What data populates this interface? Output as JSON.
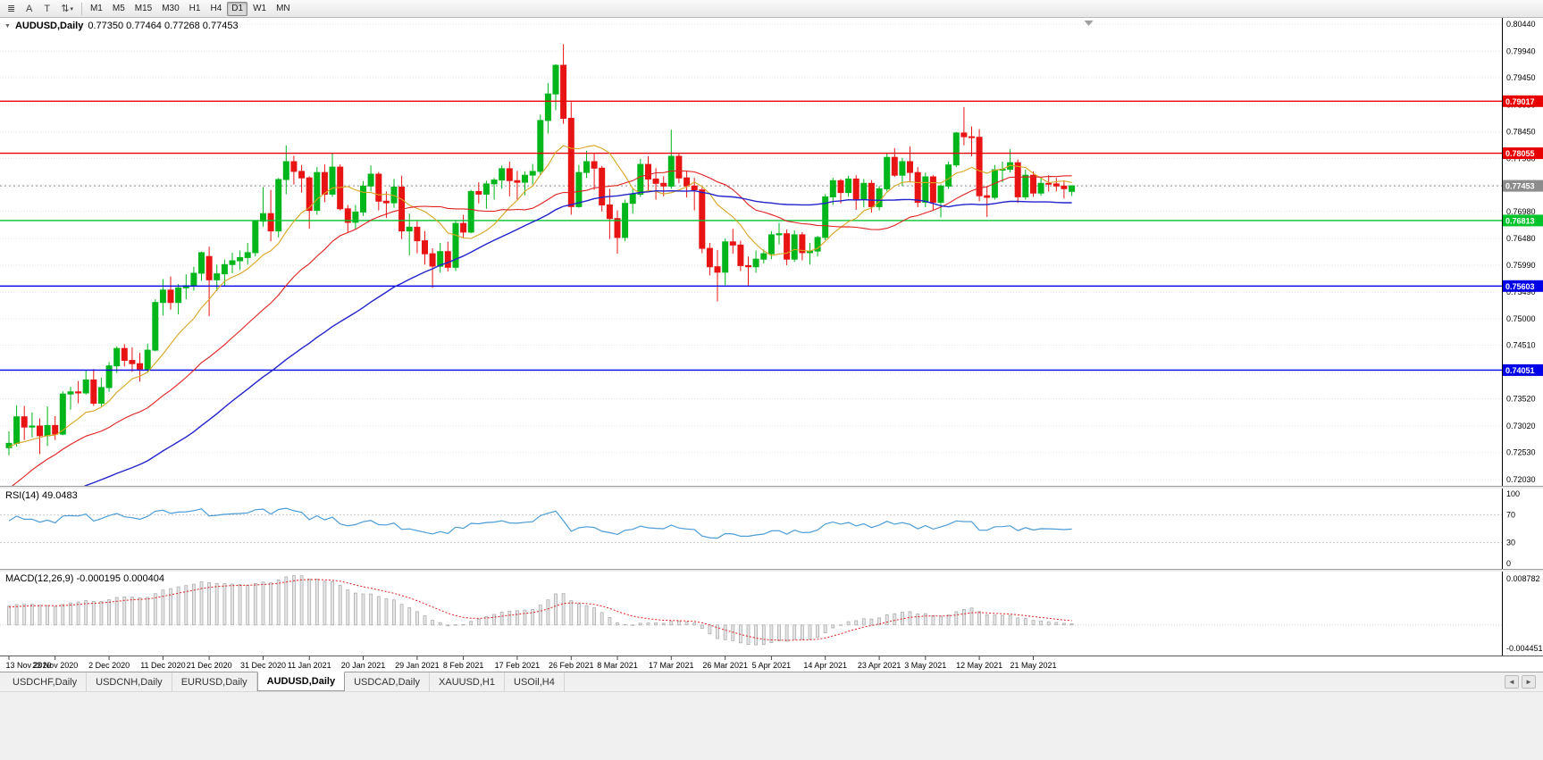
{
  "colors": {
    "bull": "#00B61B",
    "bear": "#E81414",
    "ma_fast": "#D9A521",
    "ma_mid": "#E02020",
    "ma_slow": "#2323CC",
    "level_red": "#E80000",
    "level_green": "#00C42B",
    "level_blue": "#0202E8",
    "bid": "#8C8C8C",
    "rsi": "#4C9CD6",
    "macd_hist_fill": "#E6E6E6",
    "macd_hist_stroke": "#ADADAD",
    "macd_signal": "#E02020",
    "grid": "#E4E4E4"
  },
  "toolbar": {
    "icon_buttons": [
      {
        "name": "chart-tools-icon",
        "glyph": "≣"
      },
      {
        "name": "letter-a-tool-button",
        "glyph": "A"
      },
      {
        "name": "text-box-tool-button",
        "glyph": "T"
      },
      {
        "name": "scale-arrows-dropdown-button",
        "glyph": "⇅",
        "caret": "▾"
      }
    ],
    "timeframes": [
      "M1",
      "M5",
      "M15",
      "M30",
      "H1",
      "H4",
      "D1",
      "W1",
      "MN"
    ],
    "active_timeframe": "D1"
  },
  "chart": {
    "collapse_glyph": "▼",
    "symbol": "AUDUSD,Daily",
    "ohlc": "0.77350 0.77464 0.77268 0.77453",
    "price_max": 0.8044,
    "price_min": 0.7203,
    "price_axis_labels": [
      "0.80440",
      "0.79940",
      "0.79450",
      "0.78950",
      "0.78450",
      "0.77960",
      "0.77470",
      "0.76980",
      "0.76480",
      "0.75990",
      "0.75490",
      "0.75000",
      "0.74510",
      "0.74010",
      "0.73520",
      "0.73020",
      "0.72530",
      "0.72030"
    ],
    "levels": [
      {
        "value": 0.79017,
        "label": "0.79017",
        "color": "level_red",
        "style": "solid"
      },
      {
        "value": 0.78055,
        "label": "0.78055",
        "color": "level_red",
        "style": "solid"
      },
      {
        "value": 0.77453,
        "label": "0.77453",
        "color": "bid",
        "style": "dotted"
      },
      {
        "value": 0.76813,
        "label": "0.76813",
        "color": "level_green",
        "style": "solid"
      },
      {
        "value": 0.75603,
        "label": "0.75603",
        "color": "level_blue",
        "style": "solid"
      },
      {
        "value": 0.74051,
        "label": "0.74051",
        "color": "level_blue",
        "style": "solid"
      }
    ],
    "date_labels": [
      {
        "text": "13 Nov 2020",
        "i": 0
      },
      {
        "text": "23 Nov 2020",
        "i": 6
      },
      {
        "text": "2 Dec 2020",
        "i": 13
      },
      {
        "text": "11 Dec 2020",
        "i": 20
      },
      {
        "text": "21 Dec 2020",
        "i": 26
      },
      {
        "text": "31 Dec 2020",
        "i": 33
      },
      {
        "text": "11 Jan 2021",
        "i": 39
      },
      {
        "text": "20 Jan 2021",
        "i": 46
      },
      {
        "text": "29 Jan 2021",
        "i": 53
      },
      {
        "text": "8 Feb 2021",
        "i": 59
      },
      {
        "text": "17 Feb 2021",
        "i": 66
      },
      {
        "text": "26 Feb 2021",
        "i": 73
      },
      {
        "text": "8 Mar 2021",
        "i": 79
      },
      {
        "text": "17 Mar 2021",
        "i": 86
      },
      {
        "text": "26 Mar 2021",
        "i": 93
      },
      {
        "text": "5 Apr 2021",
        "i": 99
      },
      {
        "text": "14 Apr 2021",
        "i": 106
      },
      {
        "text": "23 Apr 2021",
        "i": 113
      },
      {
        "text": "3 May 2021",
        "i": 119
      },
      {
        "text": "12 May 2021",
        "i": 126
      },
      {
        "text": "21 May 2021",
        "i": 133
      }
    ]
  },
  "rsi": {
    "label": "RSI(14) 49.0483",
    "current_value": "49.0483",
    "levels": [
      100,
      70,
      30,
      0
    ]
  },
  "macd": {
    "label": "MACD(12,26,9) -0.000195 0.000404",
    "macd_value": "-0.000195",
    "signal_value": "0.000404",
    "axis_max": 0.008782,
    "axis_min": -0.004451,
    "axis_max_label": "0.008782",
    "axis_min_label": "-0.004451"
  },
  "tabs": {
    "items": [
      {
        "label": "USDCHF,Daily",
        "active": false
      },
      {
        "label": "USDCNH,Daily",
        "active": false
      },
      {
        "label": "EURUSD,Daily",
        "active": false
      },
      {
        "label": "AUDUSD,Daily",
        "active": true
      },
      {
        "label": "USDCAD,Daily",
        "active": false
      },
      {
        "label": "XAUUSD,H1",
        "active": false
      },
      {
        "label": "USOil,H4",
        "active": false
      }
    ],
    "scroll_left_glyph": "◄",
    "scroll_right_glyph": "►"
  },
  "chart_data": {
    "type": "candlestick",
    "symbol": "AUDUSD",
    "timeframe": "Daily",
    "title": "AUDUSD,Daily",
    "ylim": [
      0.7203,
      0.8044
    ],
    "indicators": {
      "sma_fast": 10,
      "sma_mid": 25,
      "sma_slow": 50,
      "rsi": 14,
      "macd": [
        12,
        26,
        9
      ]
    },
    "prehistory_closes": [
      0.728,
      0.726,
      0.724,
      0.721,
      0.718,
      0.715,
      0.712,
      0.708,
      0.706,
      0.703,
      0.705,
      0.708,
      0.71,
      0.713,
      0.715,
      0.716,
      0.714,
      0.712,
      0.71,
      0.708,
      0.709,
      0.711,
      0.713,
      0.712,
      0.71,
      0.706,
      0.704,
      0.702,
      0.7,
      0.703,
      0.706,
      0.708,
      0.711,
      0.714,
      0.717,
      0.72,
      0.723,
      0.726,
      0.724,
      0.722,
      0.723,
      0.725,
      0.727,
      0.726,
      0.725,
      0.7265,
      0.728,
      0.727,
      0.7255,
      0.726
    ],
    "candles": [
      [
        0.7262,
        0.7292,
        0.7248,
        0.727
      ],
      [
        0.727,
        0.734,
        0.7264,
        0.7319
      ],
      [
        0.7319,
        0.7339,
        0.7276,
        0.73
      ],
      [
        0.73,
        0.7327,
        0.7281,
        0.7302
      ],
      [
        0.7302,
        0.7316,
        0.725,
        0.7284
      ],
      [
        0.7284,
        0.7338,
        0.7265,
        0.7303
      ],
      [
        0.7303,
        0.732,
        0.7276,
        0.7287
      ],
      [
        0.7287,
        0.7366,
        0.7285,
        0.7361
      ],
      [
        0.7361,
        0.7374,
        0.7332,
        0.7365
      ],
      [
        0.7365,
        0.7385,
        0.7344,
        0.7363
      ],
      [
        0.7363,
        0.7405,
        0.736,
        0.7387
      ],
      [
        0.7387,
        0.7407,
        0.7339,
        0.7344
      ],
      [
        0.7344,
        0.7391,
        0.7338,
        0.7373
      ],
      [
        0.7373,
        0.742,
        0.7365,
        0.7413
      ],
      [
        0.7413,
        0.7449,
        0.74,
        0.7445
      ],
      [
        0.7445,
        0.7453,
        0.7412,
        0.7423
      ],
      [
        0.7423,
        0.7447,
        0.7402,
        0.7417
      ],
      [
        0.7417,
        0.7437,
        0.7384,
        0.7407
      ],
      [
        0.7407,
        0.7454,
        0.74,
        0.7442
      ],
      [
        0.7442,
        0.7536,
        0.744,
        0.753
      ],
      [
        0.753,
        0.7573,
        0.7506,
        0.7553
      ],
      [
        0.7553,
        0.7578,
        0.7517,
        0.753
      ],
      [
        0.753,
        0.7564,
        0.7508,
        0.7557
      ],
      [
        0.7557,
        0.7582,
        0.7536,
        0.7561
      ],
      [
        0.7561,
        0.7596,
        0.7552,
        0.7584
      ],
      [
        0.7584,
        0.7624,
        0.757,
        0.7622
      ],
      [
        0.7615,
        0.7633,
        0.7505,
        0.7572
      ],
      [
        0.7572,
        0.76,
        0.7551,
        0.7583
      ],
      [
        0.7583,
        0.7609,
        0.756,
        0.76
      ],
      [
        0.76,
        0.7622,
        0.7584,
        0.7607
      ],
      [
        0.7607,
        0.7626,
        0.759,
        0.7613
      ],
      [
        0.7613,
        0.764,
        0.76,
        0.7622
      ],
      [
        0.7622,
        0.7682,
        0.7615,
        0.768
      ],
      [
        0.768,
        0.7743,
        0.767,
        0.7694
      ],
      [
        0.7694,
        0.7738,
        0.7643,
        0.7662
      ],
      [
        0.7662,
        0.776,
        0.765,
        0.7757
      ],
      [
        0.7757,
        0.782,
        0.773,
        0.779
      ],
      [
        0.779,
        0.7801,
        0.7748,
        0.7772
      ],
      [
        0.7772,
        0.7784,
        0.7733,
        0.776
      ],
      [
        0.776,
        0.7763,
        0.7666,
        0.77
      ],
      [
        0.77,
        0.778,
        0.7692,
        0.777
      ],
      [
        0.777,
        0.7785,
        0.7715,
        0.773
      ],
      [
        0.773,
        0.7805,
        0.7725,
        0.778
      ],
      [
        0.778,
        0.7785,
        0.77,
        0.7703
      ],
      [
        0.7703,
        0.771,
        0.7659,
        0.7678
      ],
      [
        0.7678,
        0.771,
        0.7665,
        0.7697
      ],
      [
        0.7697,
        0.7754,
        0.769,
        0.7745
      ],
      [
        0.7745,
        0.7783,
        0.7735,
        0.7767
      ],
      [
        0.7767,
        0.7771,
        0.77,
        0.7717
      ],
      [
        0.7717,
        0.7735,
        0.7686,
        0.7714
      ],
      [
        0.7714,
        0.7758,
        0.7705,
        0.7743
      ],
      [
        0.7743,
        0.7764,
        0.7647,
        0.7662
      ],
      [
        0.7662,
        0.7694,
        0.7617,
        0.7669
      ],
      [
        0.7669,
        0.768,
        0.7621,
        0.7644
      ],
      [
        0.7644,
        0.7662,
        0.76,
        0.762
      ],
      [
        0.762,
        0.763,
        0.7557,
        0.7597
      ],
      [
        0.7597,
        0.764,
        0.7585,
        0.7624
      ],
      [
        0.7624,
        0.7642,
        0.7587,
        0.7595
      ],
      [
        0.7595,
        0.7682,
        0.7588,
        0.7676
      ],
      [
        0.7676,
        0.7692,
        0.765,
        0.766
      ],
      [
        0.766,
        0.7738,
        0.7658,
        0.7735
      ],
      [
        0.7735,
        0.7752,
        0.7713,
        0.773
      ],
      [
        0.773,
        0.7755,
        0.7703,
        0.7749
      ],
      [
        0.7749,
        0.776,
        0.772,
        0.7756
      ],
      [
        0.7756,
        0.7783,
        0.774,
        0.7777
      ],
      [
        0.7777,
        0.779,
        0.7726,
        0.7755
      ],
      [
        0.7755,
        0.7773,
        0.772,
        0.7752
      ],
      [
        0.7752,
        0.7772,
        0.7728,
        0.7765
      ],
      [
        0.7765,
        0.7786,
        0.7748,
        0.7772
      ],
      [
        0.7772,
        0.7877,
        0.7765,
        0.7866
      ],
      [
        0.7866,
        0.7935,
        0.7842,
        0.7915
      ],
      [
        0.7915,
        0.797,
        0.7885,
        0.7968
      ],
      [
        0.7968,
        0.8007,
        0.786,
        0.787
      ],
      [
        0.787,
        0.79,
        0.7692,
        0.7707
      ],
      [
        0.7707,
        0.7784,
        0.7705,
        0.777
      ],
      [
        0.777,
        0.781,
        0.776,
        0.779
      ],
      [
        0.779,
        0.7805,
        0.7738,
        0.7778
      ],
      [
        0.7778,
        0.7782,
        0.7698,
        0.771
      ],
      [
        0.771,
        0.774,
        0.7647,
        0.7685
      ],
      [
        0.7685,
        0.77,
        0.762,
        0.765
      ],
      [
        0.765,
        0.772,
        0.7643,
        0.7713
      ],
      [
        0.7713,
        0.774,
        0.7694,
        0.773
      ],
      [
        0.773,
        0.7795,
        0.7725,
        0.7785
      ],
      [
        0.7785,
        0.78,
        0.7735,
        0.7758
      ],
      [
        0.7758,
        0.7778,
        0.772,
        0.775
      ],
      [
        0.775,
        0.7763,
        0.7726,
        0.7745
      ],
      [
        0.7745,
        0.7849,
        0.774,
        0.78
      ],
      [
        0.78,
        0.7805,
        0.775,
        0.776
      ],
      [
        0.776,
        0.7773,
        0.7724,
        0.7745
      ],
      [
        0.7745,
        0.776,
        0.77,
        0.7738
      ],
      [
        0.7738,
        0.7742,
        0.7621,
        0.763
      ],
      [
        0.763,
        0.764,
        0.758,
        0.7596
      ],
      [
        0.7596,
        0.7627,
        0.7532,
        0.7586
      ],
      [
        0.7586,
        0.7648,
        0.7562,
        0.7642
      ],
      [
        0.7642,
        0.7666,
        0.762,
        0.7636
      ],
      [
        0.7636,
        0.7644,
        0.7588,
        0.7598
      ],
      [
        0.7598,
        0.7615,
        0.756,
        0.7596
      ],
      [
        0.7596,
        0.7626,
        0.7585,
        0.761
      ],
      [
        0.761,
        0.7628,
        0.7602,
        0.762
      ],
      [
        0.762,
        0.7662,
        0.761,
        0.7655
      ],
      [
        0.7655,
        0.7677,
        0.7637,
        0.7657
      ],
      [
        0.7657,
        0.7665,
        0.7599,
        0.761
      ],
      [
        0.761,
        0.7663,
        0.7605,
        0.7655
      ],
      [
        0.7655,
        0.766,
        0.7608,
        0.7622
      ],
      [
        0.7622,
        0.764,
        0.76,
        0.7625
      ],
      [
        0.7625,
        0.7653,
        0.7615,
        0.765
      ],
      [
        0.765,
        0.773,
        0.7645,
        0.7725
      ],
      [
        0.7725,
        0.776,
        0.771,
        0.7755
      ],
      [
        0.7755,
        0.7758,
        0.7713,
        0.7733
      ],
      [
        0.7733,
        0.7764,
        0.7725,
        0.7758
      ],
      [
        0.7758,
        0.7765,
        0.7701,
        0.772
      ],
      [
        0.772,
        0.7758,
        0.7706,
        0.775
      ],
      [
        0.775,
        0.7756,
        0.7696,
        0.7707
      ],
      [
        0.7707,
        0.7745,
        0.77,
        0.774
      ],
      [
        0.774,
        0.7805,
        0.7735,
        0.7798
      ],
      [
        0.7798,
        0.7815,
        0.7762,
        0.7765
      ],
      [
        0.7765,
        0.7797,
        0.7745,
        0.779
      ],
      [
        0.779,
        0.7818,
        0.7752,
        0.777
      ],
      [
        0.777,
        0.778,
        0.7706,
        0.7715
      ],
      [
        0.7715,
        0.777,
        0.7706,
        0.7762
      ],
      [
        0.7762,
        0.7765,
        0.7701,
        0.7715
      ],
      [
        0.7715,
        0.7748,
        0.7687,
        0.7745
      ],
      [
        0.7745,
        0.779,
        0.774,
        0.7784
      ],
      [
        0.7784,
        0.7845,
        0.778,
        0.7843
      ],
      [
        0.7843,
        0.7891,
        0.782,
        0.7836
      ],
      [
        0.7836,
        0.7855,
        0.78,
        0.7835
      ],
      [
        0.7835,
        0.785,
        0.7717,
        0.7727
      ],
      [
        0.7727,
        0.7745,
        0.7688,
        0.7724
      ],
      [
        0.7724,
        0.7784,
        0.772,
        0.7775
      ],
      [
        0.7775,
        0.779,
        0.7752,
        0.7776
      ],
      [
        0.7776,
        0.7813,
        0.777,
        0.7788
      ],
      [
        0.7788,
        0.7794,
        0.7714,
        0.7725
      ],
      [
        0.7725,
        0.7775,
        0.772,
        0.7765
      ],
      [
        0.7765,
        0.7772,
        0.7725,
        0.7732
      ],
      [
        0.7732,
        0.7762,
        0.7727,
        0.775
      ],
      [
        0.775,
        0.7765,
        0.7735,
        0.7749
      ],
      [
        0.7749,
        0.776,
        0.7735,
        0.7745
      ],
      [
        0.7745,
        0.7755,
        0.7722,
        0.774
      ],
      [
        0.7735,
        0.77464,
        0.77268,
        0.77453
      ]
    ]
  }
}
